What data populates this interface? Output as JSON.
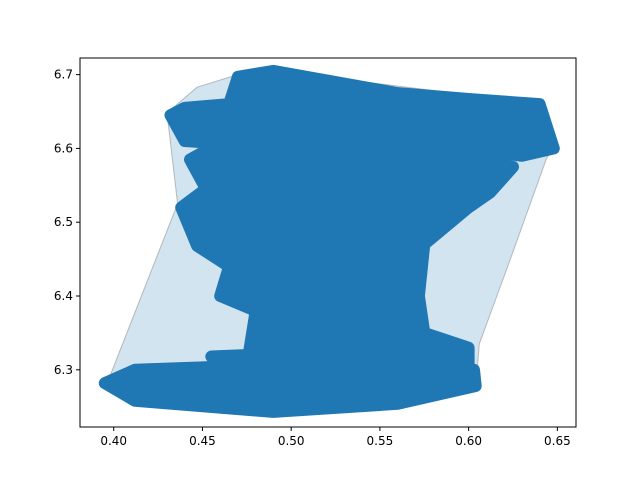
{
  "chart_data": {
    "type": "scatter",
    "title": "",
    "xlabel": "",
    "ylabel": "",
    "xlim": [
      0.381,
      0.6605
    ],
    "ylim": [
      6.2225,
      6.7225
    ],
    "x_ticks": [
      0.4,
      0.45,
      0.5,
      0.55,
      0.6,
      0.65
    ],
    "x_tick_labels": [
      "0.40",
      "0.45",
      "0.50",
      "0.55",
      "0.60",
      "0.65"
    ],
    "y_ticks": [
      6.3,
      6.4,
      6.5,
      6.6,
      6.7
    ],
    "y_tick_labels": [
      "6.3",
      "6.4",
      "6.5",
      "6.6",
      "6.7"
    ],
    "grid": false,
    "legend": "none",
    "colors": {
      "points": "#1f77b4",
      "hull_fill": "#1f77b4",
      "hull_fill_alpha": 0.2,
      "hull_edge": "#7f7f7f"
    },
    "convex_hull": [
      [
        0.396,
        6.28
      ],
      [
        0.412,
        6.258
      ],
      [
        0.488,
        6.242
      ],
      [
        0.56,
        6.252
      ],
      [
        0.604,
        6.277
      ],
      [
        0.606,
        6.335
      ],
      [
        0.622,
        6.44
      ],
      [
        0.644,
        6.587
      ],
      [
        0.648,
        6.6
      ],
      [
        0.635,
        6.662
      ],
      [
        0.488,
        6.706
      ],
      [
        0.466,
        6.697
      ],
      [
        0.447,
        6.683
      ],
      [
        0.43,
        6.648
      ],
      [
        0.436,
        6.525
      ]
    ],
    "point_cloud": [
      {
        "part": "bottom-band",
        "outline": [
          [
            0.395,
            6.282
          ],
          [
            0.412,
            6.3
          ],
          [
            0.47,
            6.305
          ],
          [
            0.54,
            6.302
          ],
          [
            0.603,
            6.3
          ],
          [
            0.604,
            6.278
          ],
          [
            0.56,
            6.254
          ],
          [
            0.49,
            6.243
          ],
          [
            0.412,
            6.258
          ]
        ]
      },
      {
        "part": "center-body",
        "outline": [
          [
            0.455,
            6.318
          ],
          [
            0.476,
            6.32
          ],
          [
            0.48,
            6.38
          ],
          [
            0.46,
            6.4
          ],
          [
            0.465,
            6.44
          ],
          [
            0.447,
            6.468
          ],
          [
            0.438,
            6.52
          ],
          [
            0.452,
            6.545
          ],
          [
            0.443,
            6.585
          ],
          [
            0.458,
            6.605
          ],
          [
            0.5,
            6.61
          ],
          [
            0.57,
            6.6
          ],
          [
            0.625,
            6.575
          ],
          [
            0.612,
            6.54
          ],
          [
            0.6,
            6.52
          ],
          [
            0.575,
            6.47
          ],
          [
            0.572,
            6.4
          ],
          [
            0.575,
            6.35
          ],
          [
            0.6,
            6.33
          ],
          [
            0.6,
            6.305
          ],
          [
            0.56,
            6.3
          ],
          [
            0.5,
            6.305
          ]
        ]
      },
      {
        "part": "top-band",
        "outline": [
          [
            0.432,
            6.645
          ],
          [
            0.44,
            6.61
          ],
          [
            0.47,
            6.605
          ],
          [
            0.56,
            6.61
          ],
          [
            0.63,
            6.59
          ],
          [
            0.648,
            6.6
          ],
          [
            0.64,
            6.66
          ],
          [
            0.6,
            6.667
          ],
          [
            0.56,
            6.675
          ],
          [
            0.49,
            6.705
          ],
          [
            0.47,
            6.697
          ],
          [
            0.465,
            6.66
          ],
          [
            0.44,
            6.655
          ]
        ]
      }
    ]
  }
}
